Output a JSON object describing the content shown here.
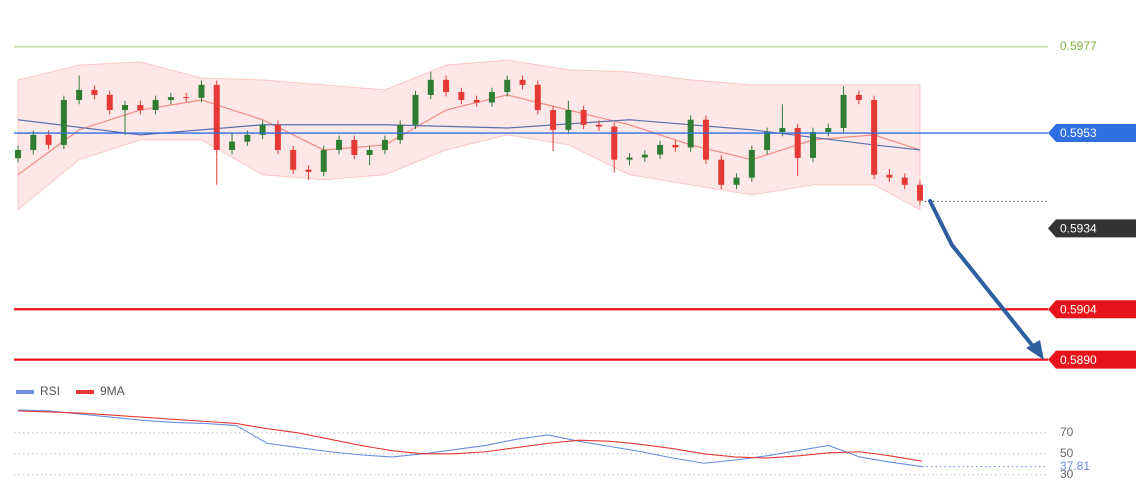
{
  "chart_data": [
    {
      "type": "candlestick",
      "ylim": [
        0.5886,
        0.599
      ],
      "up_color": "#2e7d32",
      "down_color": "#e53935",
      "open": [
        0.5946,
        0.59483,
        0.59525,
        0.59497,
        0.59622,
        0.5965,
        0.59636,
        0.59594,
        0.59608,
        0.59594,
        0.59622,
        0.5963,
        0.59628,
        0.59664,
        0.59483,
        0.59506,
        0.59525,
        0.59553,
        0.59483,
        0.59428,
        0.59422,
        0.59483,
        0.59511,
        0.59469,
        0.59483,
        0.59511,
        0.59553,
        0.59636,
        0.59678,
        0.59644,
        0.59622,
        0.59615,
        0.59644,
        0.59678,
        0.59664,
        0.59594,
        0.59539,
        0.59594,
        0.59553,
        0.59548,
        0.59456,
        0.59462,
        0.5947,
        0.59497,
        0.5949,
        0.59567,
        0.59456,
        0.59386,
        0.59406,
        0.59483,
        0.59533,
        0.59544,
        0.59461,
        0.59533,
        0.59544,
        0.59636,
        0.59622,
        0.59414,
        0.59406,
        0.59386
      ],
      "high": [
        0.59495,
        0.59537,
        0.59537,
        0.59634,
        0.5969,
        0.59662,
        0.59648,
        0.5962,
        0.5962,
        0.59634,
        0.59642,
        0.59642,
        0.59676,
        0.59676,
        0.5953,
        0.59537,
        0.59565,
        0.59565,
        0.59495,
        0.5944,
        0.59495,
        0.59523,
        0.59523,
        0.59495,
        0.59523,
        0.59565,
        0.59648,
        0.597,
        0.5969,
        0.59656,
        0.59634,
        0.59656,
        0.5969,
        0.5969,
        0.59676,
        0.59606,
        0.5962,
        0.59606,
        0.59565,
        0.5956,
        0.59474,
        0.59482,
        0.59509,
        0.59509,
        0.59579,
        0.59579,
        0.59468,
        0.59418,
        0.59495,
        0.59545,
        0.5961,
        0.59556,
        0.59545,
        0.59556,
        0.5966,
        0.59648,
        0.59634,
        0.5943,
        0.59418,
        0.59398
      ],
      "low": [
        0.59448,
        0.59471,
        0.59485,
        0.59485,
        0.5961,
        0.59624,
        0.59582,
        0.59525,
        0.59582,
        0.59582,
        0.5961,
        0.59616,
        0.59616,
        0.59386,
        0.59471,
        0.59494,
        0.59513,
        0.59471,
        0.59416,
        0.594,
        0.5941,
        0.59471,
        0.59457,
        0.5944,
        0.59471,
        0.59499,
        0.59541,
        0.59624,
        0.59632,
        0.5961,
        0.59603,
        0.59603,
        0.59632,
        0.59652,
        0.59582,
        0.5948,
        0.59527,
        0.59541,
        0.59536,
        0.5942,
        0.5944,
        0.5945,
        0.59458,
        0.59478,
        0.59478,
        0.59444,
        0.59374,
        0.59374,
        0.59394,
        0.59471,
        0.59521,
        0.5941,
        0.59449,
        0.59521,
        0.59532,
        0.5961,
        0.59402,
        0.59394,
        0.59374,
        0.5933
      ],
      "close": [
        0.59483,
        0.59525,
        0.59497,
        0.59622,
        0.5965,
        0.59636,
        0.59594,
        0.59608,
        0.59594,
        0.59622,
        0.5963,
        0.59628,
        0.59664,
        0.59483,
        0.59506,
        0.59525,
        0.59553,
        0.59483,
        0.59428,
        0.59422,
        0.59483,
        0.59511,
        0.59469,
        0.59483,
        0.59511,
        0.59553,
        0.59636,
        0.59678,
        0.59644,
        0.59622,
        0.59615,
        0.59644,
        0.59678,
        0.59664,
        0.59594,
        0.59539,
        0.59594,
        0.59553,
        0.59548,
        0.59456,
        0.59462,
        0.5947,
        0.59497,
        0.5949,
        0.59567,
        0.59456,
        0.59386,
        0.59406,
        0.59483,
        0.59533,
        0.59544,
        0.59461,
        0.59533,
        0.59544,
        0.59636,
        0.59622,
        0.59414,
        0.59406,
        0.59386,
        0.59342
      ],
      "bands": {
        "color": "#fbd3d3",
        "line_color": "#f28b82",
        "index": [
          0,
          4,
          8,
          12,
          16,
          20,
          24,
          28,
          32,
          36,
          40,
          44,
          48,
          52,
          56,
          59
        ],
        "upper": [
          0.59678,
          0.59719,
          0.59728,
          0.59683,
          0.59678,
          0.59664,
          0.5965,
          0.59719,
          0.59733,
          0.59706,
          0.597,
          0.59678,
          0.59664,
          0.59664,
          0.59664,
          0.59664
        ],
        "lower": [
          0.59317,
          0.59456,
          0.59511,
          0.59511,
          0.59414,
          0.594,
          0.59414,
          0.59483,
          0.59525,
          0.59497,
          0.59414,
          0.59386,
          0.59358,
          0.59386,
          0.59386,
          0.59317
        ],
        "middle": [
          0.59414,
          0.59539,
          0.59594,
          0.59622,
          0.59567,
          0.59483,
          0.59497,
          0.59594,
          0.59636,
          0.59594,
          0.59553,
          0.59497,
          0.59456,
          0.59511,
          0.59525,
          0.59483
        ]
      },
      "ma_slow": {
        "color": "#5a6fae",
        "index": [
          0,
          8,
          16,
          24,
          32,
          40,
          48,
          56,
          59
        ],
        "values": [
          0.59567,
          0.59525,
          0.59553,
          0.59553,
          0.59544,
          0.59567,
          0.59539,
          0.59497,
          0.59483
        ]
      },
      "levels": [
        {
          "value": 0.5977,
          "color": "#7cb342",
          "style": "text"
        },
        {
          "value": 0.5953,
          "color": "#2f6fe4",
          "style": "box"
        },
        {
          "value": 0.5934,
          "color": "#333333",
          "style": "current"
        },
        {
          "value": 0.5904,
          "color": "#e8141b",
          "style": "box"
        },
        {
          "value": {
            "value": 0.589,
            "label": "0.5890"
          },
          "color": "#e8141b",
          "style": "box"
        }
      ]
    },
    {
      "type": "line",
      "ylim": [
        25,
        100
      ],
      "yticks": [
        70,
        50,
        30
      ],
      "grid": true,
      "series": [
        {
          "name": "RSI",
          "color": "#6b8de3",
          "values": [
            92,
            91,
            88,
            85,
            82,
            80,
            79,
            77,
            60,
            56,
            52,
            49,
            47,
            50,
            54,
            58,
            64,
            68,
            62,
            57,
            52,
            46,
            41,
            44,
            48,
            53,
            58,
            47,
            42,
            37.81
          ]
        },
        {
          "name": "9MA",
          "color": "#e53935",
          "values": [
            91,
            90,
            89,
            87,
            85,
            83,
            81,
            79,
            74,
            70,
            64,
            58,
            53,
            50,
            50,
            52,
            56,
            60,
            63,
            62,
            59,
            55,
            50,
            47,
            46,
            48,
            51,
            52,
            48,
            43
          ]
        }
      ]
    }
  ]
}
